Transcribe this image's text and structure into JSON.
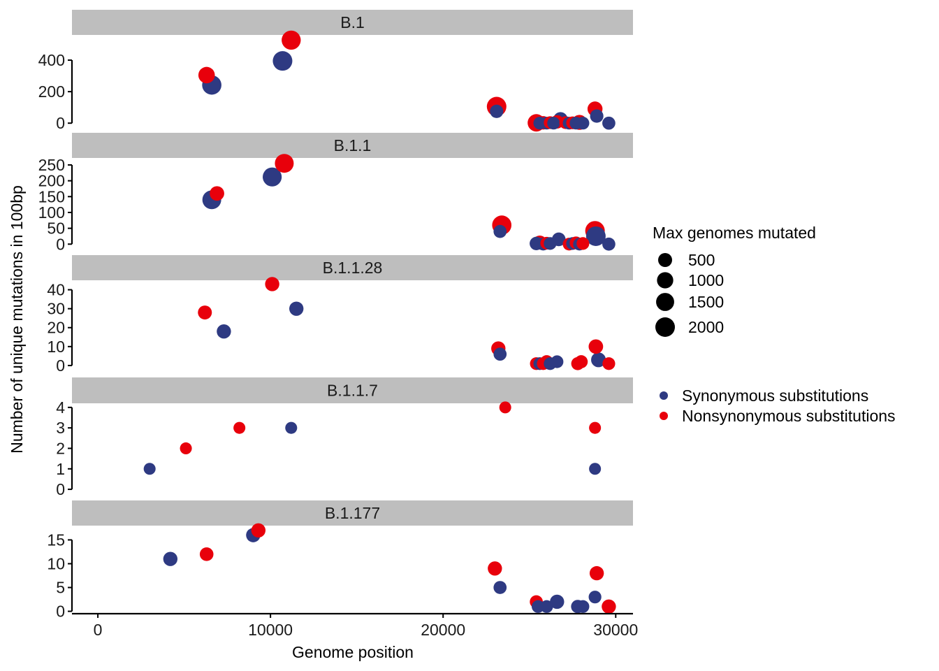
{
  "chart_data": {
    "type": "scatter",
    "xlabel": "Genome position",
    "ylabel": "Number of unique mutations in 100bp",
    "x_range": [
      -1500,
      31000
    ],
    "x_ticks": [
      0,
      10000,
      20000,
      30000
    ],
    "grid": false,
    "facet_strip_color": "#bebebe",
    "size_legend": {
      "title": "Max genomes mutated",
      "values": [
        500,
        1000,
        1500,
        2000
      ],
      "color": "#000000"
    },
    "color_legend": [
      {
        "key": "syn",
        "label": "Synonymous substitutions",
        "color": "#2e3a82"
      },
      {
        "key": "nonsyn",
        "label": "Nonsynonymous substitutions",
        "color": "#e8000b"
      }
    ],
    "legend_position": "right",
    "panels": [
      {
        "title": "B.1",
        "ylim": [
          -8,
          560
        ],
        "yticks": [
          0,
          200,
          400
        ],
        "points": [
          {
            "s": "nonsyn",
            "x": 6300,
            "y": 305,
            "g": 1050
          },
          {
            "s": "syn",
            "x": 6600,
            "y": 242,
            "g": 1900
          },
          {
            "s": "nonsyn",
            "x": 11200,
            "y": 527,
            "g": 1850
          },
          {
            "s": "syn",
            "x": 10700,
            "y": 395,
            "g": 2000
          },
          {
            "s": "nonsyn",
            "x": 23100,
            "y": 105,
            "g": 2000
          },
          {
            "s": "syn",
            "x": 23100,
            "y": 75,
            "g": 400
          },
          {
            "s": "nonsyn",
            "x": 25400,
            "y": 2,
            "g": 1300
          },
          {
            "s": "syn",
            "x": 25600,
            "y": 0,
            "g": 300
          },
          {
            "s": "nonsyn",
            "x": 25800,
            "y": 2,
            "g": 400
          },
          {
            "s": "syn",
            "x": 26000,
            "y": 0,
            "g": 300
          },
          {
            "s": "nonsyn",
            "x": 26200,
            "y": 3,
            "g": 300
          },
          {
            "s": "syn",
            "x": 26400,
            "y": 0,
            "g": 300
          },
          {
            "s": "nonsyn",
            "x": 26600,
            "y": 8,
            "g": 400
          },
          {
            "s": "syn",
            "x": 26800,
            "y": 25,
            "g": 550
          },
          {
            "s": "nonsyn",
            "x": 27100,
            "y": 3,
            "g": 300
          },
          {
            "s": "syn",
            "x": 27300,
            "y": 0,
            "g": 300
          },
          {
            "s": "nonsyn",
            "x": 27500,
            "y": 2,
            "g": 300
          },
          {
            "s": "syn",
            "x": 27700,
            "y": 0,
            "g": 300
          },
          {
            "s": "nonsyn",
            "x": 27900,
            "y": 5,
            "g": 700
          },
          {
            "s": "syn",
            "x": 28100,
            "y": 0,
            "g": 300
          },
          {
            "s": "nonsyn",
            "x": 28800,
            "y": 90,
            "g": 700
          },
          {
            "s": "syn",
            "x": 28900,
            "y": 45,
            "g": 400
          },
          {
            "s": "syn",
            "x": 29600,
            "y": 0,
            "g": 350
          }
        ]
      },
      {
        "title": "B.1.1",
        "ylim": [
          -6,
          272
        ],
        "yticks": [
          0,
          50,
          100,
          150,
          200,
          250
        ],
        "points": [
          {
            "s": "nonsyn",
            "x": 6900,
            "y": 160,
            "g": 600
          },
          {
            "s": "syn",
            "x": 6600,
            "y": 140,
            "g": 1750
          },
          {
            "s": "nonsyn",
            "x": 10800,
            "y": 255,
            "g": 1750
          },
          {
            "s": "syn",
            "x": 10100,
            "y": 212,
            "g": 1800
          },
          {
            "s": "nonsyn",
            "x": 23400,
            "y": 60,
            "g": 1900
          },
          {
            "s": "syn",
            "x": 23300,
            "y": 40,
            "g": 350
          },
          {
            "s": "syn",
            "x": 25400,
            "y": 2,
            "g": 400
          },
          {
            "s": "nonsyn",
            "x": 25600,
            "y": 5,
            "g": 500
          },
          {
            "s": "syn",
            "x": 25800,
            "y": 0,
            "g": 300
          },
          {
            "s": "nonsyn",
            "x": 26000,
            "y": 3,
            "g": 300
          },
          {
            "s": "syn",
            "x": 26200,
            "y": 2,
            "g": 300
          },
          {
            "s": "syn",
            "x": 26700,
            "y": 15,
            "g": 450
          },
          {
            "s": "nonsyn",
            "x": 27300,
            "y": 0,
            "g": 300
          },
          {
            "s": "syn",
            "x": 27500,
            "y": 2,
            "g": 300
          },
          {
            "s": "nonsyn",
            "x": 27700,
            "y": 4,
            "g": 300
          },
          {
            "s": "syn",
            "x": 27900,
            "y": 0,
            "g": 300
          },
          {
            "s": "nonsyn",
            "x": 28100,
            "y": 2,
            "g": 300
          },
          {
            "s": "nonsyn",
            "x": 28800,
            "y": 42,
            "g": 2000
          },
          {
            "s": "syn",
            "x": 28850,
            "y": 25,
            "g": 2000
          },
          {
            "s": "syn",
            "x": 29600,
            "y": 0,
            "g": 350
          }
        ]
      },
      {
        "title": "B.1.1.28",
        "ylim": [
          -1.5,
          45
        ],
        "yticks": [
          0,
          10,
          20,
          30,
          40
        ],
        "points": [
          {
            "s": "nonsyn",
            "x": 6200,
            "y": 28,
            "g": 500
          },
          {
            "s": "syn",
            "x": 7300,
            "y": 18,
            "g": 550
          },
          {
            "s": "nonsyn",
            "x": 10100,
            "y": 43,
            "g": 550
          },
          {
            "s": "syn",
            "x": 11500,
            "y": 30,
            "g": 550
          },
          {
            "s": "nonsyn",
            "x": 23200,
            "y": 9,
            "g": 550
          },
          {
            "s": "syn",
            "x": 23300,
            "y": 6,
            "g": 350
          },
          {
            "s": "nonsyn",
            "x": 25400,
            "y": 1,
            "g": 300
          },
          {
            "s": "syn",
            "x": 25600,
            "y": 1,
            "g": 300
          },
          {
            "s": "nonsyn",
            "x": 25800,
            "y": 1,
            "g": 300
          },
          {
            "s": "nonsyn",
            "x": 26000,
            "y": 2,
            "g": 350
          },
          {
            "s": "syn",
            "x": 26200,
            "y": 1,
            "g": 300
          },
          {
            "s": "syn",
            "x": 26600,
            "y": 2,
            "g": 300
          },
          {
            "s": "nonsyn",
            "x": 27800,
            "y": 1,
            "g": 350
          },
          {
            "s": "nonsyn",
            "x": 28000,
            "y": 2,
            "g": 350
          },
          {
            "s": "nonsyn",
            "x": 28850,
            "y": 10,
            "g": 600
          },
          {
            "s": "syn",
            "x": 29000,
            "y": 3,
            "g": 650
          },
          {
            "s": "nonsyn",
            "x": 29600,
            "y": 1,
            "g": 300
          }
        ]
      },
      {
        "title": "B.1.1.7",
        "ylim": [
          -0.1,
          4.2
        ],
        "yticks": [
          0,
          1,
          2,
          3,
          4
        ],
        "points": [
          {
            "s": "syn",
            "x": 3000,
            "y": 1,
            "g": 200
          },
          {
            "s": "nonsyn",
            "x": 5100,
            "y": 2,
            "g": 200
          },
          {
            "s": "nonsyn",
            "x": 8200,
            "y": 3,
            "g": 200
          },
          {
            "s": "syn",
            "x": 11200,
            "y": 3,
            "g": 200
          },
          {
            "s": "nonsyn",
            "x": 23600,
            "y": 4,
            "g": 200
          },
          {
            "s": "syn",
            "x": 28800,
            "y": 1,
            "g": 200
          },
          {
            "s": "nonsyn",
            "x": 28800,
            "y": 3,
            "g": 200
          }
        ]
      },
      {
        "title": "B.1.177",
        "ylim": [
          -0.5,
          18
        ],
        "yticks": [
          0,
          5,
          10,
          15
        ],
        "points": [
          {
            "s": "syn",
            "x": 4200,
            "y": 11,
            "g": 550
          },
          {
            "s": "nonsyn",
            "x": 6300,
            "y": 12,
            "g": 450
          },
          {
            "s": "syn",
            "x": 9000,
            "y": 16,
            "g": 550
          },
          {
            "s": "nonsyn",
            "x": 9300,
            "y": 17,
            "g": 550
          },
          {
            "s": "nonsyn",
            "x": 23000,
            "y": 9,
            "g": 550
          },
          {
            "s": "syn",
            "x": 23300,
            "y": 5,
            "g": 350
          },
          {
            "s": "nonsyn",
            "x": 25400,
            "y": 2,
            "g": 350
          },
          {
            "s": "syn",
            "x": 25500,
            "y": 1,
            "g": 300
          },
          {
            "s": "syn",
            "x": 26000,
            "y": 1,
            "g": 300
          },
          {
            "s": "syn",
            "x": 26600,
            "y": 2,
            "g": 550
          },
          {
            "s": "syn",
            "x": 27800,
            "y": 1,
            "g": 400
          },
          {
            "s": "syn",
            "x": 28100,
            "y": 1,
            "g": 300
          },
          {
            "s": "syn",
            "x": 28800,
            "y": 3,
            "g": 300
          },
          {
            "s": "nonsyn",
            "x": 28900,
            "y": 8,
            "g": 550
          },
          {
            "s": "nonsyn",
            "x": 29600,
            "y": 1,
            "g": 550
          }
        ]
      }
    ]
  }
}
